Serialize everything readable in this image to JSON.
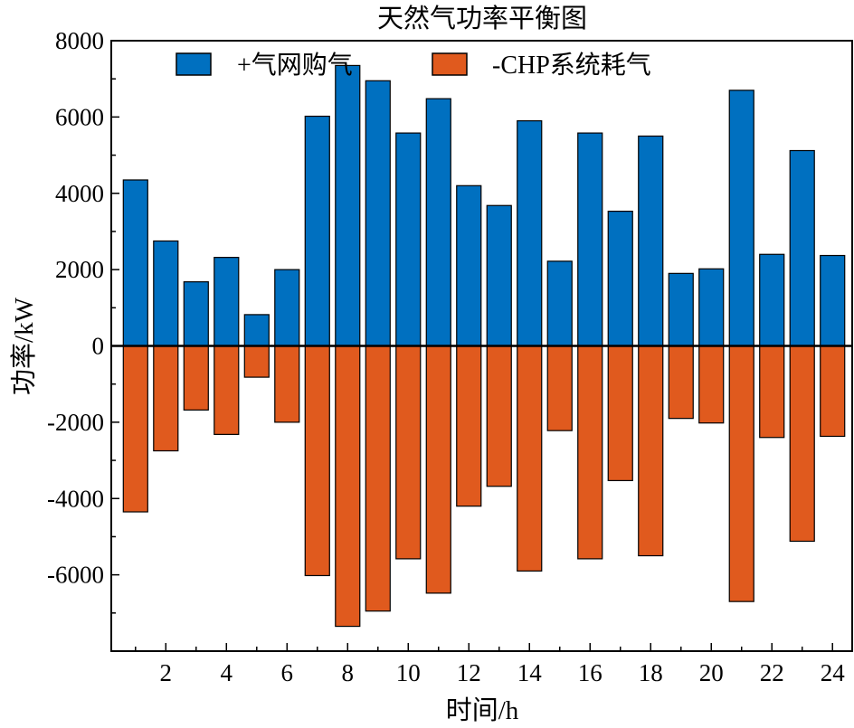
{
  "chart_data": {
    "type": "bar",
    "title": "天然气功率平衡图",
    "xlabel": "时间/h",
    "ylabel": "功率/kW",
    "ylim": [
      -8000,
      8000
    ],
    "y_ticks": [
      -6000,
      -4000,
      -2000,
      0,
      2000,
      4000,
      6000,
      8000
    ],
    "x_ticks": [
      2,
      4,
      6,
      8,
      10,
      12,
      14,
      16,
      18,
      20,
      22,
      24
    ],
    "categories": [
      1,
      2,
      3,
      4,
      5,
      6,
      7,
      8,
      9,
      10,
      11,
      12,
      13,
      14,
      15,
      16,
      17,
      18,
      19,
      20,
      21,
      22,
      23,
      24
    ],
    "legend_position": "top",
    "series": [
      {
        "name": "+气网购气",
        "color": "#0070c0",
        "values": [
          4350,
          2750,
          1680,
          2320,
          820,
          2000,
          6020,
          7350,
          6950,
          5580,
          6480,
          4200,
          3680,
          5900,
          2220,
          5580,
          3530,
          5500,
          1900,
          2020,
          6700,
          2400,
          5120,
          2370
        ]
      },
      {
        "name": "-CHP系统耗气",
        "color": "#e05a1e",
        "values": [
          -4350,
          -2750,
          -1680,
          -2320,
          -820,
          -2000,
          -6020,
          -7350,
          -6950,
          -5580,
          -6480,
          -4200,
          -3680,
          -5900,
          -2220,
          -5580,
          -3530,
          -5500,
          -1900,
          -2020,
          -6700,
          -2400,
          -5120,
          -2370
        ]
      }
    ]
  }
}
